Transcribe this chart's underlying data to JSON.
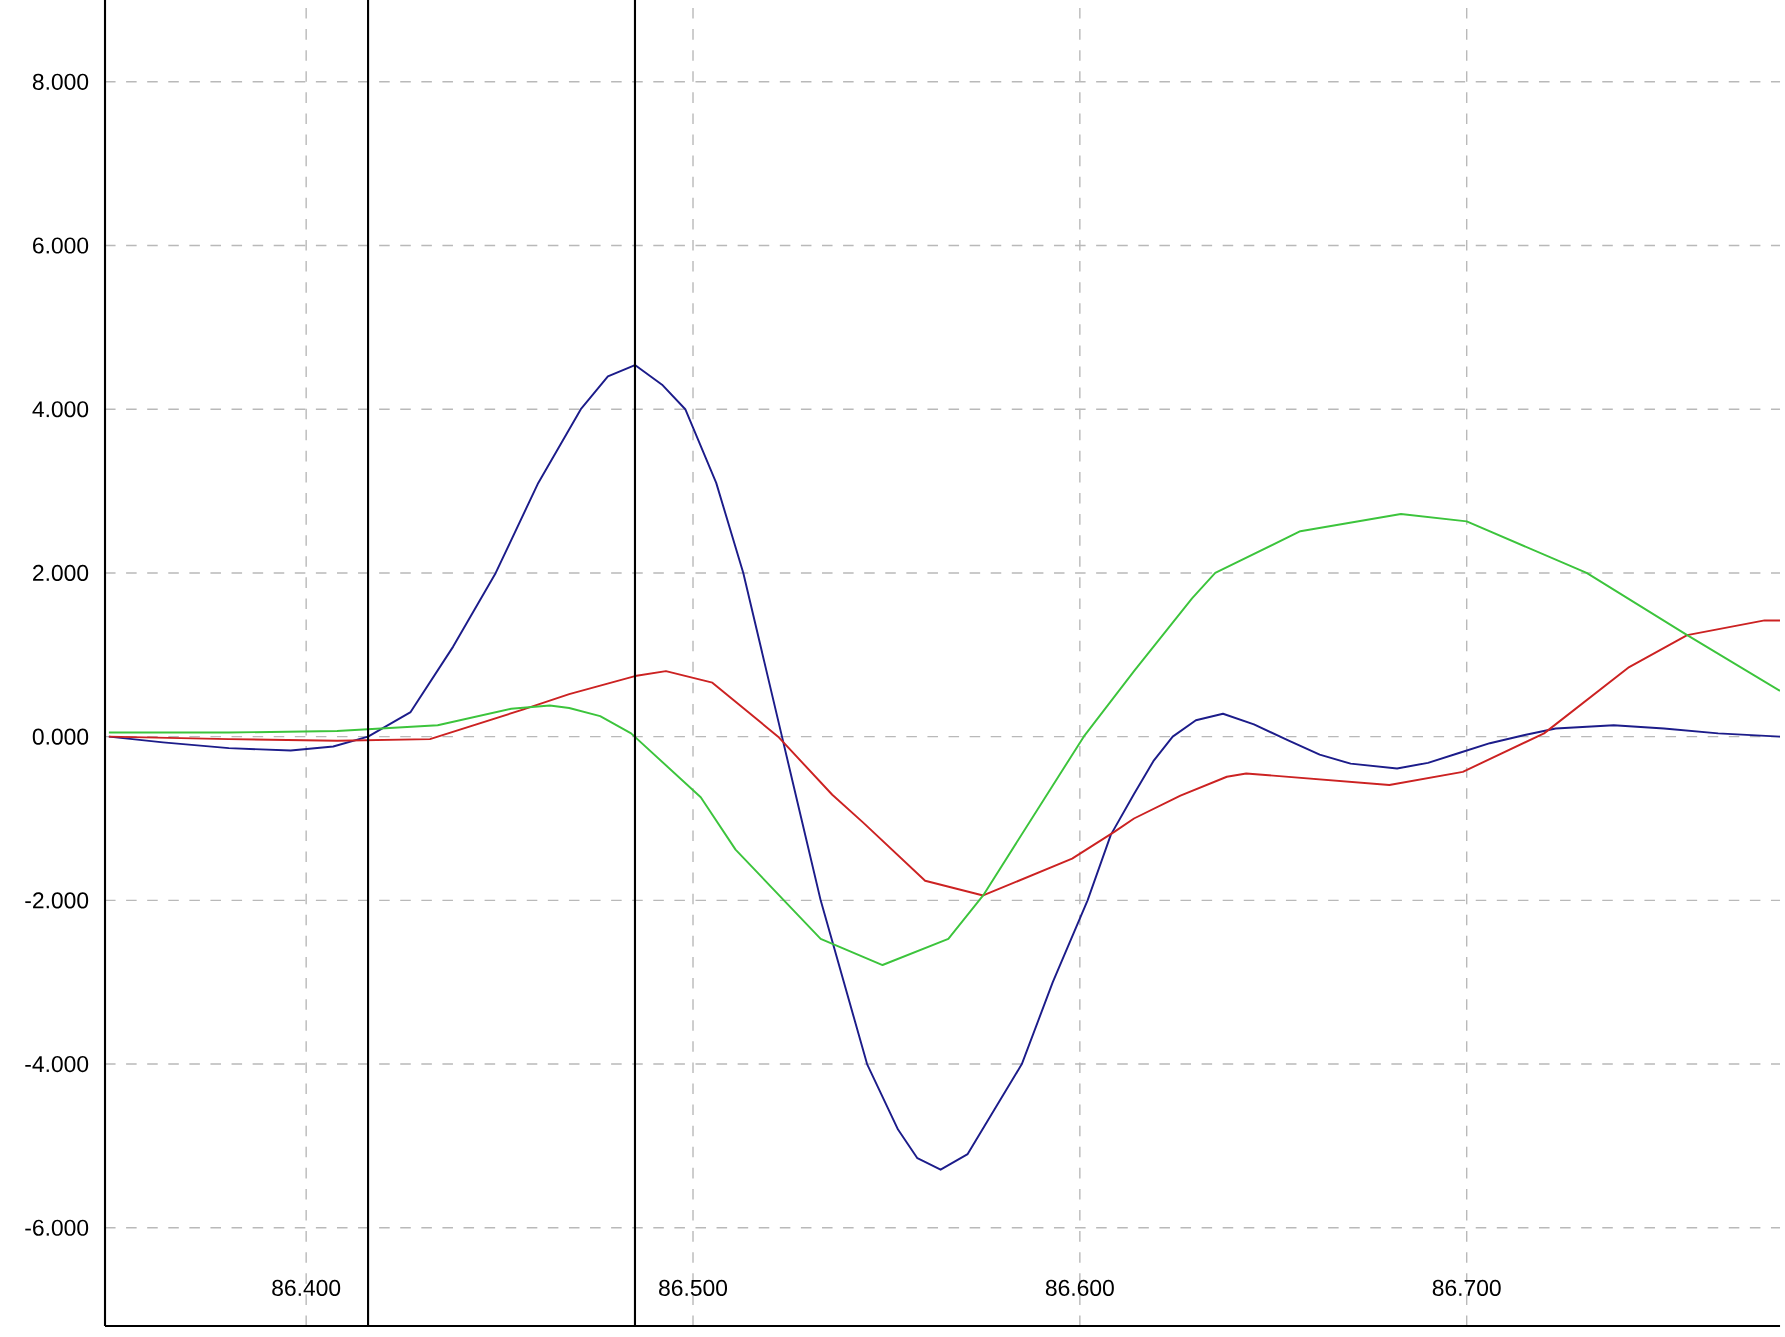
{
  "chart_data": {
    "type": "line",
    "xlim": [
      86.348,
      86.781
    ],
    "ylim": [
      -7.2,
      9.0
    ],
    "xticks": [
      {
        "value": 86.4,
        "label": "86.400"
      },
      {
        "value": 86.5,
        "label": "86.500"
      },
      {
        "value": 86.6,
        "label": "86.600"
      },
      {
        "value": 86.7,
        "label": "86.700"
      }
    ],
    "yticks": [
      {
        "value": -6,
        "label": "-6.000"
      },
      {
        "value": -4,
        "label": "-4.000"
      },
      {
        "value": -2,
        "label": "-2.000"
      },
      {
        "value": 0,
        "label": "0.000"
      },
      {
        "value": 2,
        "label": "2.000"
      },
      {
        "value": 4,
        "label": "4.000"
      },
      {
        "value": 6,
        "label": "6.000"
      },
      {
        "value": 8,
        "label": "8.000"
      }
    ],
    "grid": true,
    "ref_lines": [
      {
        "axis": "x",
        "value": 86.416,
        "color": "#000000"
      },
      {
        "axis": "x",
        "value": 86.485,
        "color": "#000000"
      }
    ],
    "series": [
      {
        "color": "#1c1c8a",
        "x": [
          86.349,
          86.363,
          86.38,
          86.396,
          86.407,
          86.416,
          86.427,
          86.438,
          86.449,
          86.46,
          86.471,
          86.478,
          86.485,
          86.492,
          86.498,
          86.506,
          86.513,
          86.518,
          86.523,
          86.528,
          86.533,
          86.539,
          86.545,
          86.553,
          86.558,
          86.564,
          86.571,
          86.578,
          86.585,
          86.593,
          86.602,
          86.608,
          86.614,
          86.619,
          86.624,
          86.63,
          86.637,
          86.645,
          86.654,
          86.662,
          86.67,
          86.682,
          86.69,
          86.698,
          86.706,
          86.715,
          86.723,
          86.738,
          86.751,
          86.765,
          86.781
        ],
        "values": [
          0.0,
          -0.07,
          -0.14,
          -0.17,
          -0.12,
          0.0,
          0.3,
          1.1,
          2.0,
          3.1,
          4.0,
          4.4,
          4.54,
          4.3,
          4.0,
          3.1,
          2.0,
          1.0,
          0.0,
          -1.0,
          -2.0,
          -3.0,
          -4.0,
          -4.8,
          -5.15,
          -5.29,
          -5.1,
          -4.55,
          -4.0,
          -3.0,
          -2.0,
          -1.2,
          -0.7,
          -0.3,
          0.0,
          0.2,
          0.28,
          0.15,
          -0.05,
          -0.22,
          -0.33,
          -0.39,
          -0.32,
          -0.2,
          -0.08,
          0.02,
          0.1,
          0.14,
          0.1,
          0.04,
          0.0
        ]
      },
      {
        "color": "#cc2222",
        "x": [
          86.349,
          86.38,
          86.408,
          86.432,
          86.456,
          86.468,
          86.485,
          86.493,
          86.505,
          86.522,
          86.536,
          86.544,
          86.56,
          86.575,
          86.598,
          86.609,
          86.614,
          86.626,
          86.638,
          86.643,
          86.68,
          86.699,
          86.72,
          86.742,
          86.757,
          86.777,
          86.781
        ],
        "values": [
          0.0,
          -0.03,
          -0.05,
          -0.03,
          0.33,
          0.52,
          0.74,
          0.8,
          0.66,
          0.0,
          -0.71,
          -1.05,
          -1.76,
          -1.94,
          -1.49,
          -1.16,
          -1.0,
          -0.72,
          -0.49,
          -0.45,
          -0.59,
          -0.43,
          0.04,
          0.85,
          1.24,
          1.42,
          1.42
        ]
      },
      {
        "color": "#3cc43c",
        "x": [
          86.349,
          86.38,
          86.408,
          86.434,
          86.453,
          86.463,
          86.468,
          86.476,
          86.484,
          86.502,
          86.511,
          86.533,
          86.549,
          86.566,
          86.575,
          86.601,
          86.614,
          86.629,
          86.635,
          86.657,
          86.683,
          86.7,
          86.731,
          86.757,
          86.781
        ],
        "values": [
          0.05,
          0.05,
          0.07,
          0.14,
          0.34,
          0.38,
          0.35,
          0.25,
          0.04,
          -0.74,
          -1.38,
          -2.47,
          -2.79,
          -2.47,
          -1.94,
          0.0,
          0.8,
          1.69,
          2.0,
          2.51,
          2.72,
          2.63,
          2.0,
          1.24,
          0.56
        ]
      }
    ]
  }
}
